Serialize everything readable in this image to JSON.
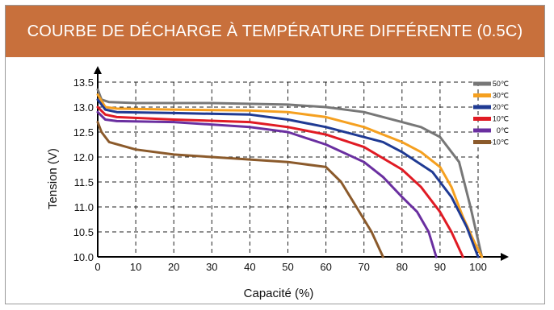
{
  "title": "COURBE DE DÉCHARGE À TEMPÉRATURE DIFFÉRENTE (0.5C)",
  "colors": {
    "header_bg": "#c8703c",
    "grid": "#222222",
    "axis": "#000000"
  },
  "chart_data": {
    "type": "line",
    "title": "COURBE DE DÉCHARGE À TEMPÉRATURE DIFFÉRENTE (0.5C)",
    "xlabel": "Capacité (%)",
    "ylabel": "Tension (V)",
    "xlim": [
      0,
      100
    ],
    "ylim": [
      10.0,
      13.5
    ],
    "grid": true,
    "legend_position": "top-right",
    "x_ticks": [
      "0",
      "10",
      "20",
      "30",
      "40",
      "50",
      "60",
      "70",
      "80",
      "90",
      "100"
    ],
    "y_ticks": [
      "10.0",
      "10.5",
      "11.0",
      "11.5",
      "12.0",
      "12.5",
      "13.0",
      "13.5"
    ],
    "series": [
      {
        "name": "50℃",
        "color": "#777777",
        "points": [
          [
            0,
            13.35
          ],
          [
            1,
            13.15
          ],
          [
            3,
            13.1
          ],
          [
            10,
            13.08
          ],
          [
            30,
            13.08
          ],
          [
            50,
            13.05
          ],
          [
            60,
            13.0
          ],
          [
            70,
            12.9
          ],
          [
            80,
            12.7
          ],
          [
            85,
            12.6
          ],
          [
            90,
            12.4
          ],
          [
            95,
            11.9
          ],
          [
            98,
            11.0
          ],
          [
            101,
            10.0
          ]
        ]
      },
      {
        "name": "30℃",
        "color": "#f5a020",
        "points": [
          [
            0,
            13.25
          ],
          [
            2,
            13.0
          ],
          [
            5,
            12.97
          ],
          [
            20,
            12.95
          ],
          [
            40,
            12.93
          ],
          [
            50,
            12.9
          ],
          [
            60,
            12.8
          ],
          [
            70,
            12.6
          ],
          [
            80,
            12.3
          ],
          [
            85,
            12.1
          ],
          [
            90,
            11.8
          ],
          [
            93,
            11.4
          ],
          [
            96,
            10.8
          ],
          [
            99,
            10.3
          ],
          [
            101,
            10.0
          ]
        ]
      },
      {
        "name": "20℃",
        "color": "#1f3a93",
        "points": [
          [
            0,
            13.15
          ],
          [
            2,
            12.95
          ],
          [
            5,
            12.9
          ],
          [
            20,
            12.88
          ],
          [
            40,
            12.85
          ],
          [
            50,
            12.75
          ],
          [
            60,
            12.6
          ],
          [
            70,
            12.4
          ],
          [
            75,
            12.3
          ],
          [
            80,
            12.1
          ],
          [
            88,
            11.7
          ],
          [
            93,
            11.2
          ],
          [
            97,
            10.6
          ],
          [
            100,
            10.0
          ]
        ]
      },
      {
        "name": "10℃",
        "color": "#e01b24",
        "points": [
          [
            0,
            13.0
          ],
          [
            2,
            12.85
          ],
          [
            5,
            12.8
          ],
          [
            20,
            12.75
          ],
          [
            40,
            12.7
          ],
          [
            50,
            12.6
          ],
          [
            60,
            12.45
          ],
          [
            70,
            12.2
          ],
          [
            80,
            11.75
          ],
          [
            85,
            11.4
          ],
          [
            90,
            10.9
          ],
          [
            93,
            10.5
          ],
          [
            96,
            10.0
          ]
        ]
      },
      {
        "name": "0℃",
        "color": "#6a2fa0",
        "points": [
          [
            0,
            12.9
          ],
          [
            2,
            12.75
          ],
          [
            5,
            12.72
          ],
          [
            20,
            12.7
          ],
          [
            40,
            12.6
          ],
          [
            50,
            12.5
          ],
          [
            60,
            12.25
          ],
          [
            70,
            11.9
          ],
          [
            75,
            11.6
          ],
          [
            80,
            11.2
          ],
          [
            84,
            10.9
          ],
          [
            87,
            10.5
          ],
          [
            89,
            10.0
          ]
        ]
      },
      {
        "name": "-10℃",
        "color": "#8b5a2b",
        "points": [
          [
            0,
            12.7
          ],
          [
            1,
            12.5
          ],
          [
            3,
            12.3
          ],
          [
            10,
            12.15
          ],
          [
            20,
            12.05
          ],
          [
            30,
            12.0
          ],
          [
            40,
            11.95
          ],
          [
            50,
            11.9
          ],
          [
            60,
            11.8
          ],
          [
            64,
            11.5
          ],
          [
            68,
            11.0
          ],
          [
            72,
            10.5
          ],
          [
            75,
            10.0
          ]
        ]
      }
    ]
  }
}
